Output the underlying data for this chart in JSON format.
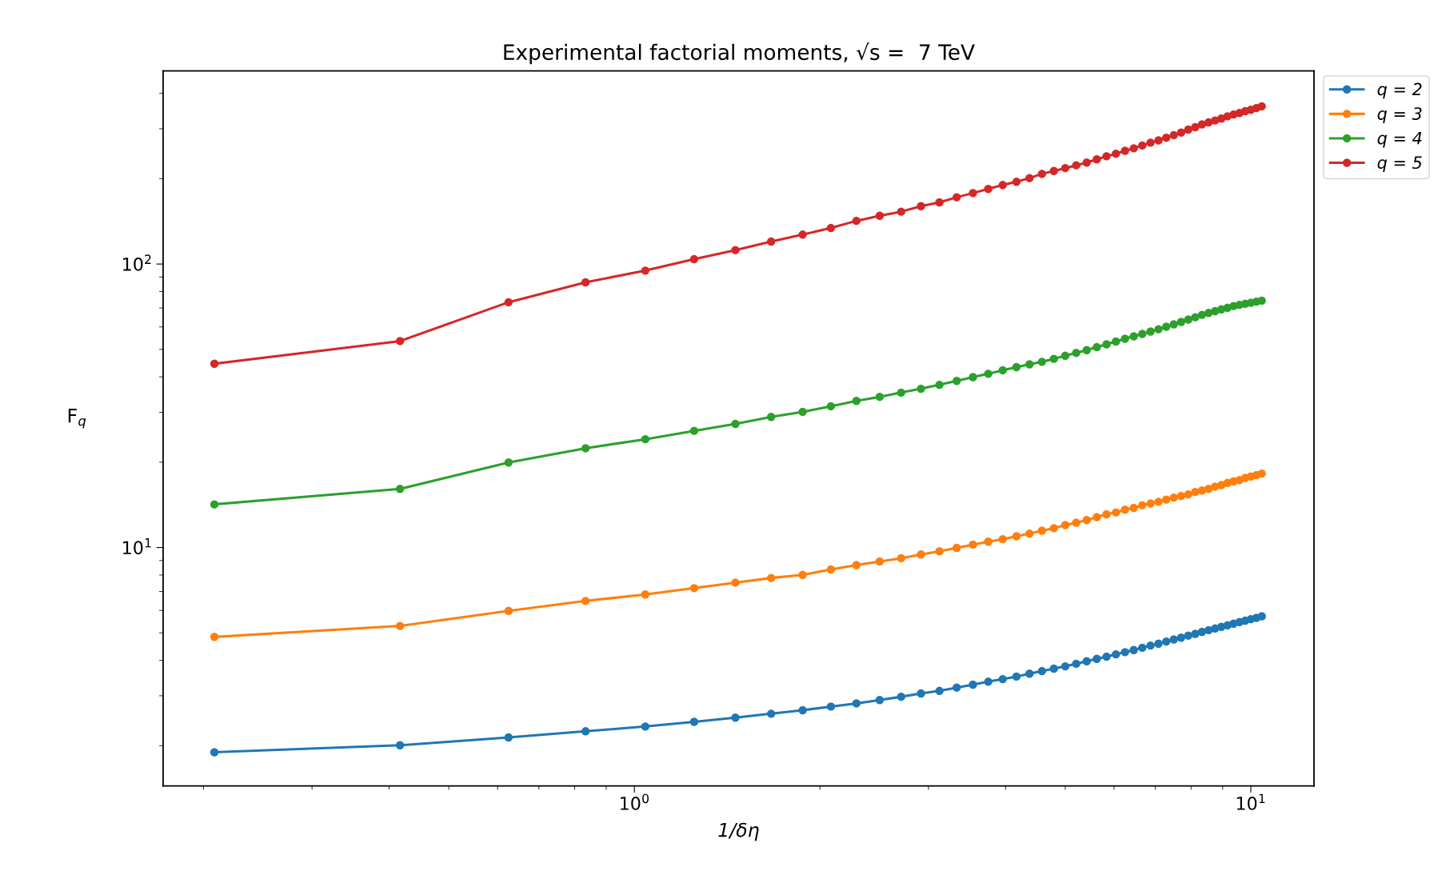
{
  "chart_data": {
    "type": "line",
    "title": "Experimental factorial moments, √s =  7 TeV",
    "xlabel": "1/δη",
    "ylabel": "F$_{q}$",
    "log": "xy",
    "grid": false,
    "legend": "top right",
    "marker": "circle",
    "line_style": "solid",
    "xlim": [
      0.172,
      12.66
    ],
    "ylim": [
      1.443,
      480
    ],
    "xticks": [
      {
        "value": 1,
        "label": "10$^{0}$"
      },
      {
        "value": 10,
        "label": "10$^{1}$"
      }
    ],
    "yticks": [
      {
        "value": 10,
        "label": "10$^{1}$"
      },
      {
        "value": 100,
        "label": "10$^{2}$"
      }
    ],
    "x": [
      0.2083,
      0.4167,
      0.625,
      0.8333,
      1.0417,
      1.25,
      1.4583,
      1.6667,
      1.875,
      2.0833,
      2.2917,
      2.5,
      2.7083,
      2.9167,
      3.125,
      3.3333,
      3.5417,
      3.75,
      3.9583,
      4.1667,
      4.375,
      4.5833,
      4.7917,
      5,
      5.2083,
      5.4167,
      5.625,
      5.8333,
      6.0417,
      6.25,
      6.4583,
      6.6667,
      6.875,
      7.0833,
      7.2917,
      7.5,
      7.7083,
      7.9167,
      8.125,
      8.3333,
      8.5417,
      8.75,
      8.9583,
      9.1667,
      9.375,
      9.5833,
      9.7917,
      10,
      10.2083,
      10.4167
    ],
    "series": [
      {
        "name": "q = 2",
        "color": "#1f77b4",
        "values": [
          1.896,
          2.007,
          2.138,
          2.248,
          2.337,
          2.427,
          2.512,
          2.593,
          2.668,
          2.748,
          2.82,
          2.897,
          2.976,
          3.057,
          3.121,
          3.206,
          3.284,
          3.363,
          3.434,
          3.506,
          3.59,
          3.665,
          3.74,
          3.81,
          3.89,
          3.97,
          4.05,
          4.12,
          4.2,
          4.276,
          4.35,
          4.43,
          4.51,
          4.58,
          4.66,
          4.74,
          4.81,
          4.89,
          4.96,
          5.04,
          5.11,
          5.18,
          5.25,
          5.32,
          5.39,
          5.46,
          5.52,
          5.59,
          5.65,
          5.72
        ]
      },
      {
        "name": "q = 3",
        "color": "#ff7f0e",
        "values": [
          4.84,
          5.29,
          5.98,
          6.48,
          6.83,
          7.19,
          7.52,
          7.81,
          8.01,
          8.37,
          8.67,
          8.93,
          9.17,
          9.45,
          9.7,
          9.97,
          10.24,
          10.49,
          10.7,
          10.96,
          11.2,
          11.47,
          11.7,
          12.0,
          12.24,
          12.5,
          12.8,
          13.1,
          13.3,
          13.6,
          13.8,
          14.1,
          14.3,
          14.5,
          14.76,
          15.0,
          15.2,
          15.4,
          15.7,
          15.89,
          16.1,
          16.4,
          16.6,
          16.9,
          17.12,
          17.3,
          17.6,
          17.8,
          18.0,
          18.23
        ]
      },
      {
        "name": "q = 4",
        "color": "#2ca02c",
        "values": [
          14.2,
          16.1,
          19.95,
          22.4,
          24.1,
          25.8,
          27.3,
          28.9,
          30.1,
          31.5,
          32.9,
          34.0,
          35.2,
          36.3,
          37.5,
          38.7,
          39.9,
          41.0,
          42.2,
          43.3,
          44.3,
          45.2,
          46.3,
          47.5,
          48.6,
          49.7,
          50.9,
          52.1,
          53.3,
          54.5,
          55.6,
          56.7,
          57.8,
          58.9,
          60.1,
          61.3,
          62.5,
          63.7,
          64.9,
          66.2,
          67.2,
          68.2,
          69.2,
          70.1,
          71.1,
          71.8,
          72.4,
          73.0,
          73.7,
          74.3
        ]
      },
      {
        "name": "q = 5",
        "color": "#d62728",
        "values": [
          44.5,
          53.5,
          73.3,
          86.2,
          94.8,
          104,
          112,
          120,
          127,
          134,
          142,
          148,
          153,
          160,
          165,
          172,
          178,
          184,
          190,
          195,
          201,
          208,
          213,
          218,
          223,
          228,
          234,
          240,
          245,
          251,
          256,
          262,
          268,
          273,
          279,
          285,
          291,
          298,
          304,
          311,
          316,
          321,
          326,
          332,
          337,
          341,
          346,
          350,
          355,
          360
        ]
      }
    ]
  }
}
